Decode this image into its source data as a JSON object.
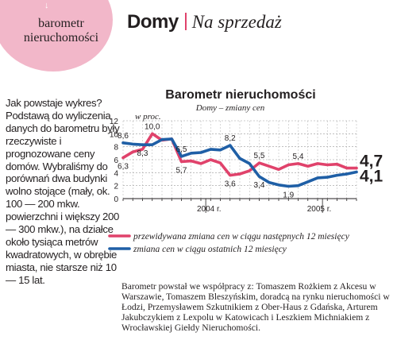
{
  "section_badge": {
    "arrow": "↓",
    "line1": "barometr",
    "line2": "nieruchomości"
  },
  "header": {
    "title": "Domy",
    "subtitle": "Na sprzedaż"
  },
  "body_text": "Jak powstaje wykres? Podstawą do wyliczenia danych do barometru były rzeczywiste i prognozowane ceny domów. Wybraliśmy do porównań dwa budynki wolno stojące (mały, ok. 100 — 200 mkw. powierzchni i większy 200 — 300 mkw.), na działce około tysiąca metrów kwadratowych, w obrębie miasta, nie starsze niż 10 — 15 lat.",
  "footnote": "Barometr powstał we współpracy z: Tomaszem Rożkiem z Akcesu w Warszawie, Tomaszem Bleszyńskim, doradcą na rynku nieruchomości w Łodzi, Przemysławem Szkutnikiem z Ober-Haus z Gdańska, Arturem Jakubczykiem z Lexpolu w Katowicach i Leszkiem Michniakiem z Wrocławskiej Giełdy Nieruchomości.",
  "chart_data": {
    "type": "line",
    "title": "Barometr nieruchomości",
    "subtitle": "Domy – zmiany cen",
    "ylabel": "w proc.",
    "ylim": [
      0,
      12
    ],
    "yticks": [
      0,
      2,
      4,
      6,
      8,
      10,
      12
    ],
    "year_labels": [
      "2004 r.",
      "2005 r."
    ],
    "grid": true,
    "n_points": 25,
    "series": [
      {
        "name": "przewidywana zmiana cen w ciągu następnych 12 miesięcy",
        "color": "#e0426b",
        "values": [
          6.3,
          7.2,
          7.6,
          10.0,
          9.0,
          9.2,
          5.7,
          5.8,
          5.4,
          6.0,
          5.5,
          3.6,
          3.8,
          4.3,
          5.5,
          5.0,
          4.5,
          5.2,
          5.4,
          5.0,
          5.4,
          5.2,
          5.3,
          4.7,
          4.7
        ],
        "labels": {
          "0": "6,3",
          "3": "10,0",
          "6": "5,7",
          "11": "3,6",
          "14": "5,5",
          "18": "5,4"
        },
        "end_label": "4,7"
      },
      {
        "name": "zmiana cen w ciągu ostatnich 12 miesięcy",
        "color": "#1f5fa6",
        "values": [
          8.6,
          8.4,
          8.3,
          8.3,
          9.1,
          9.2,
          6.5,
          7.0,
          7.1,
          7.6,
          7.5,
          8.2,
          6.2,
          5.4,
          3.4,
          2.5,
          2.1,
          1.9,
          2.0,
          2.6,
          3.2,
          3.3,
          3.6,
          3.8,
          4.1
        ],
        "labels": {
          "0": "8,6",
          "2": "8,3",
          "6": "6,5",
          "11": "8,2",
          "14": "3,4",
          "17": "1,9"
        },
        "end_label": "4,1"
      }
    ]
  }
}
